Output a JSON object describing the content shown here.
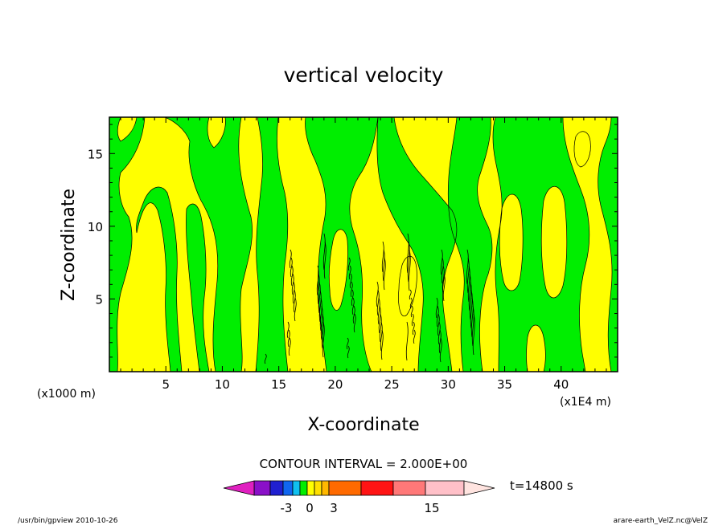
{
  "chart_data": {
    "type": "heatmap",
    "title": "vertical velocity",
    "xlabel": "X-coordinate",
    "ylabel": "Z-coordinate",
    "x_unit": "(x1E4 m)",
    "y_unit": "(x1000 m)",
    "xlim": [
      0,
      45
    ],
    "ylim": [
      0,
      17.5
    ],
    "x_ticks": [
      5,
      10,
      15,
      20,
      25,
      30,
      35,
      40
    ],
    "y_ticks": [
      5,
      10,
      15
    ],
    "field_fill_colors": [
      "#ffff00",
      "#00ee00"
    ],
    "contour_interval_label": "CONTOUR INTERVAL = 2.000E+00",
    "time_label": "t=14800 s",
    "colorbar": {
      "colors": [
        "#e020c0",
        "#8a10c8",
        "#2020d0",
        "#1066f0",
        "#10c0f0",
        "#00ee00",
        "#ffff00",
        "#ffe000",
        "#ffb800",
        "#ff6a00",
        "#ff1414",
        "#ff7878",
        "#ffc0c8",
        "#ffe4e0"
      ],
      "tick_labels": [
        {
          "text": "-3",
          "value": -3
        },
        {
          "text": "0",
          "value": 0
        },
        {
          "text": "3",
          "value": 3
        },
        {
          "text": "15",
          "value": 15
        }
      ]
    }
  },
  "footer": {
    "left": "/usr/bin/gpview   2010-10-26",
    "right": "arare-earth_VelZ.nc@VelZ"
  }
}
